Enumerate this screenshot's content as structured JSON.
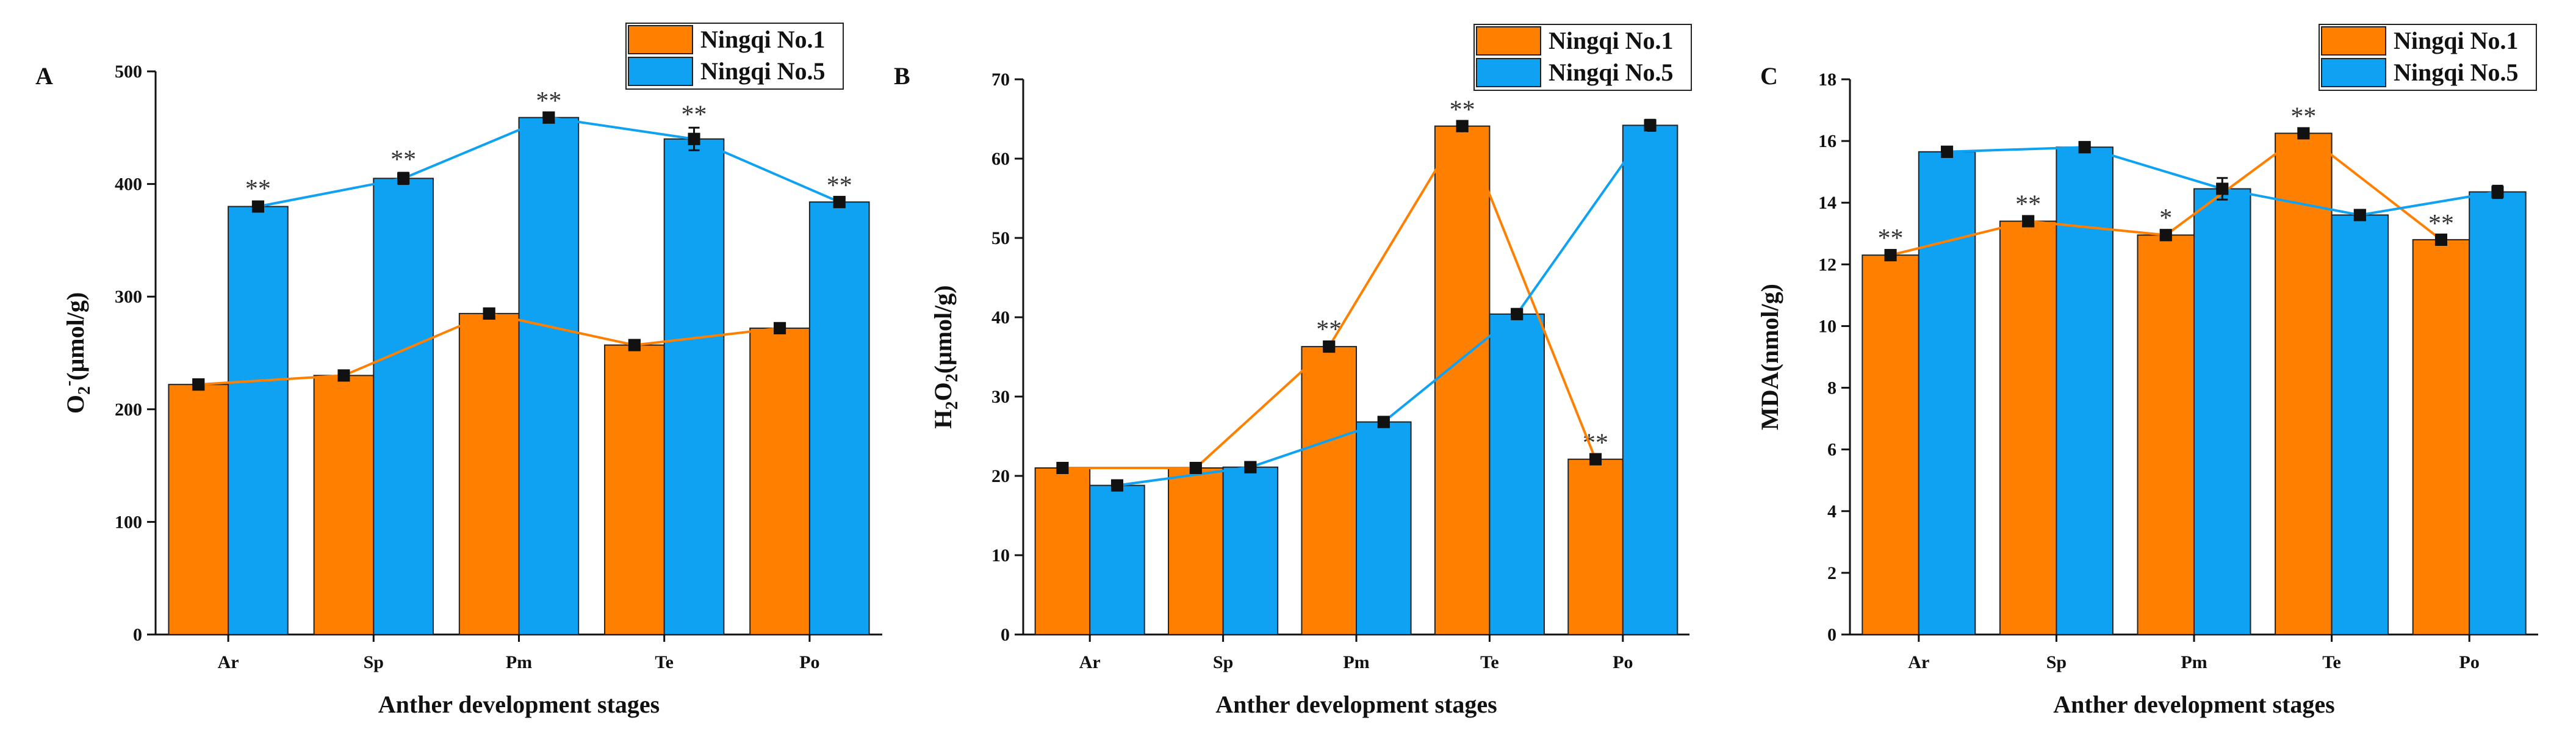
{
  "figure": {
    "legend": [
      "Ningqi No.1",
      "Ningqi No.5"
    ],
    "colors": {
      "Ningqi No.1": "#FF8000",
      "Ningqi No.5": "#0FA2F2",
      "error_bar": "#111111",
      "axis": "#111111"
    }
  },
  "chart_data": [
    {
      "panel": "A",
      "type": "bar",
      "title": "",
      "xlabel": "Anther development stages",
      "ylabel_parts": [
        "O",
        "2",
        "-",
        "(μmol/g)"
      ],
      "ylabel": "O2-(μmol/g)",
      "categories": [
        "Ar",
        "Sp",
        "Pm",
        "Te",
        "Po"
      ],
      "ylim": [
        0,
        500
      ],
      "yticks": [
        0,
        100,
        200,
        300,
        400,
        500
      ],
      "series": [
        {
          "name": "Ningqi No.1",
          "values": [
            222,
            230,
            285,
            257,
            272
          ],
          "errors": [
            3,
            3,
            3,
            3,
            3
          ],
          "sig": [
            "",
            "",
            "",
            "",
            ""
          ]
        },
        {
          "name": "Ningqi No.5",
          "values": [
            380,
            405,
            459,
            440,
            384
          ],
          "errors": [
            4,
            5,
            3,
            10,
            3
          ],
          "sig": [
            "**",
            "**",
            "**",
            "**",
            "**"
          ]
        }
      ],
      "legend_position": "top-right"
    },
    {
      "panel": "B",
      "type": "bar",
      "title": "",
      "xlabel": "Anther development stages",
      "ylabel_parts": [
        "H",
        "2",
        "O",
        "2",
        "(μmol/g)"
      ],
      "ylabel": "H2O2(μmol/g)",
      "categories": [
        "Ar",
        "Sp",
        "Pm",
        "Te",
        "Po"
      ],
      "ylim": [
        0,
        70
      ],
      "yticks": [
        0,
        10,
        20,
        30,
        40,
        50,
        60,
        70
      ],
      "series": [
        {
          "name": "Ningqi No.1",
          "values": [
            21,
            21,
            36.3,
            64.1,
            22.1
          ],
          "errors": [
            0.3,
            0.3,
            0.5,
            0.4,
            0.4
          ],
          "sig": [
            "",
            "",
            "**",
            "**",
            "**"
          ]
        },
        {
          "name": "Ningqi No.5",
          "values": [
            18.8,
            21.1,
            26.8,
            40.4,
            64.2
          ],
          "errors": [
            0.4,
            0.3,
            0.3,
            0.6,
            0.7
          ],
          "sig": [
            "",
            "",
            "",
            "",
            ""
          ]
        }
      ],
      "legend_position": "top-right"
    },
    {
      "panel": "C",
      "type": "bar",
      "title": "",
      "xlabel": "Anther development stages",
      "ylabel": "MDA(nmol/g)",
      "categories": [
        "Ar",
        "Sp",
        "Pm",
        "Te",
        "Po"
      ],
      "ylim": [
        0,
        18
      ],
      "yticks": [
        0,
        2,
        4,
        6,
        8,
        10,
        12,
        14,
        16,
        18
      ],
      "series": [
        {
          "name": "Ningqi No.1",
          "values": [
            12.3,
            13.4,
            12.95,
            16.25,
            12.8
          ],
          "errors": [
            0.12,
            0.12,
            0.12,
            0.12,
            0.1
          ],
          "sig": [
            "**",
            "**",
            "*",
            "**",
            "**"
          ]
        },
        {
          "name": "Ningqi No.5",
          "values": [
            15.65,
            15.8,
            14.45,
            13.6,
            14.35
          ],
          "errors": [
            0.15,
            0.12,
            0.35,
            0.1,
            0.2
          ],
          "sig": [
            "",
            "",
            "",
            "",
            ""
          ]
        }
      ],
      "legend_position": "top-right"
    }
  ]
}
